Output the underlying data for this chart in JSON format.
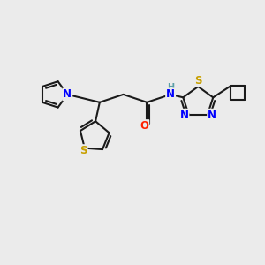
{
  "background_color": "#EBEBEB",
  "bond_color": "#1a1a1a",
  "bond_width": 1.5,
  "atom_colors": {
    "N": "#0000FF",
    "S_thiadiazole": "#C8A000",
    "S_thiophene": "#C8A000",
    "O": "#FF2200",
    "H": "#5B9EA6",
    "C": "#1a1a1a"
  },
  "font_size_atom": 8.5,
  "figsize": [
    3.0,
    3.0
  ],
  "dpi": 100
}
